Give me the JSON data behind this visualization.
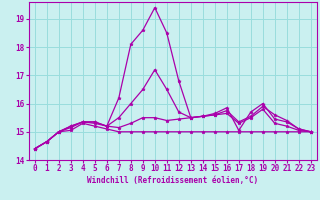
{
  "title": "",
  "xlabel": "Windchill (Refroidissement éolien,°C)",
  "background_color": "#caf0f0",
  "line_color": "#aa00aa",
  "grid_color": "#99dddd",
  "xlim": [
    -0.5,
    23.5
  ],
  "ylim": [
    14.0,
    19.6
  ],
  "yticks": [
    14,
    15,
    16,
    17,
    18,
    19
  ],
  "xticks": [
    0,
    1,
    2,
    3,
    4,
    5,
    6,
    7,
    8,
    9,
    10,
    11,
    12,
    13,
    14,
    15,
    16,
    17,
    18,
    19,
    20,
    21,
    22,
    23
  ],
  "series": [
    [
      14.4,
      14.65,
      15.0,
      15.05,
      15.3,
      15.2,
      15.1,
      15.0,
      15.0,
      15.0,
      15.0,
      15.0,
      15.0,
      15.0,
      15.0,
      15.0,
      15.0,
      15.0,
      15.0,
      15.0,
      15.0,
      15.0,
      15.0,
      15.0
    ],
    [
      14.4,
      14.65,
      15.0,
      15.15,
      15.35,
      15.3,
      15.2,
      15.15,
      15.3,
      15.5,
      15.5,
      15.4,
      15.45,
      15.5,
      15.55,
      15.6,
      15.65,
      15.3,
      15.5,
      15.8,
      15.3,
      15.2,
      15.05,
      15.0
    ],
    [
      14.4,
      14.65,
      15.0,
      15.2,
      15.35,
      15.35,
      15.2,
      15.5,
      16.0,
      16.5,
      17.2,
      16.5,
      15.7,
      15.5,
      15.55,
      15.6,
      15.75,
      15.35,
      15.55,
      15.9,
      15.6,
      15.4,
      15.1,
      15.0
    ],
    [
      14.4,
      14.65,
      15.0,
      15.2,
      15.35,
      15.35,
      15.2,
      16.2,
      18.1,
      18.6,
      19.4,
      18.5,
      16.8,
      15.5,
      15.55,
      15.65,
      15.85,
      15.05,
      15.7,
      16.0,
      15.45,
      15.35,
      15.1,
      15.0
    ]
  ]
}
